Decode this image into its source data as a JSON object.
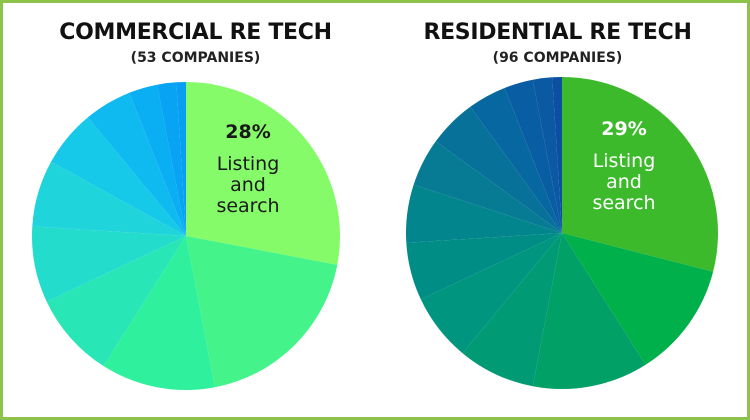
{
  "chart_data": [
    {
      "type": "pie",
      "title": "COMMERCIAL RE TECH",
      "subtitle": "(53 COMPANIES)",
      "highlight": {
        "percent_label": "28%",
        "label_lines": [
          "Listing",
          "and",
          "search"
        ]
      },
      "values": [
        28,
        19,
        12,
        9,
        8,
        7,
        6,
        5,
        3,
        2,
        1
      ],
      "colors": [
        "#86fb6a",
        "#44f48b",
        "#2ff09c",
        "#29e6b6",
        "#24dccb",
        "#1fd4da",
        "#17c9e9",
        "#0fbaf1",
        "#0aaef3",
        "#08a3f3",
        "#079ef4"
      ],
      "highlight_label_color": "#1a1a1a"
    },
    {
      "type": "pie",
      "title": "RESIDENTIAL RE TECH",
      "subtitle": "(96 COMPANIES)",
      "highlight": {
        "percent_label": "29%",
        "label_lines": [
          "Listing",
          "and",
          "search"
        ]
      },
      "values": [
        29,
        12,
        12,
        8,
        7,
        6,
        6,
        5,
        5,
        4,
        3,
        2,
        1
      ],
      "colors": [
        "#3cba2c",
        "#00b04a",
        "#00a066",
        "#009a75",
        "#00957f",
        "#008d85",
        "#02858c",
        "#067b93",
        "#07719a",
        "#0767a0",
        "#095ea3",
        "#0b58a3",
        "#0c4fa2"
      ],
      "highlight_label_color": "#ffffff"
    }
  ]
}
